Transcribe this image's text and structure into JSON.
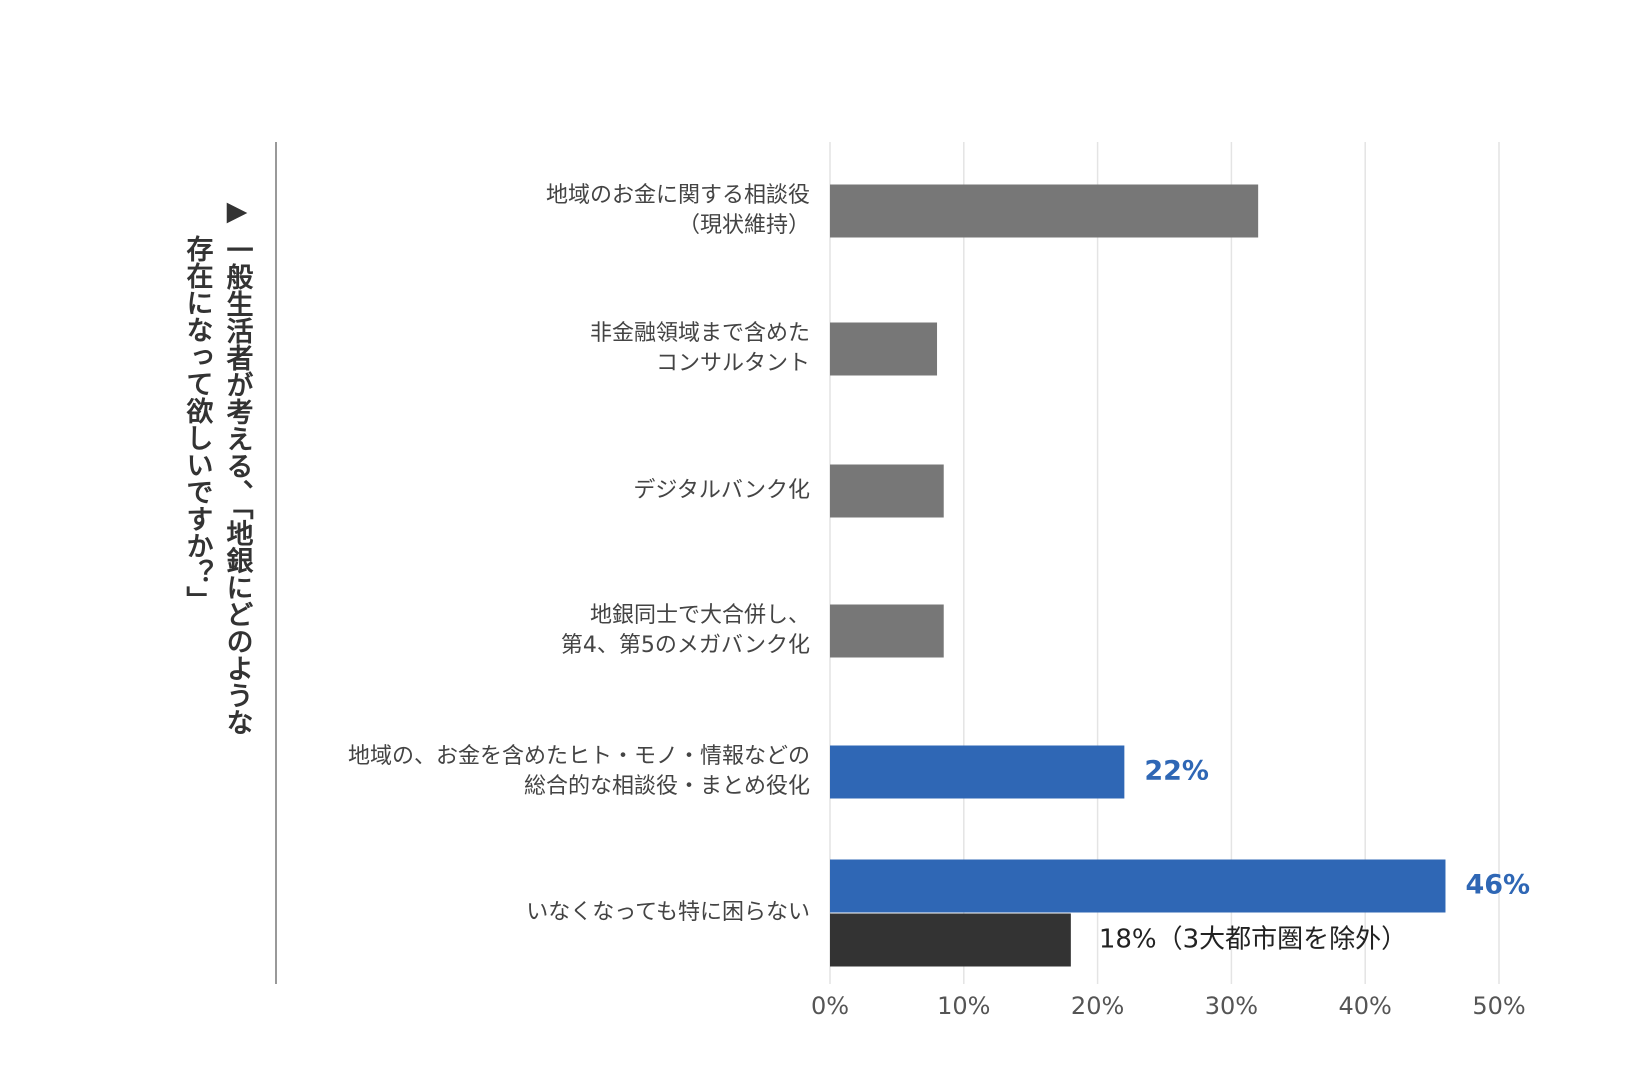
{
  "chart_data": {
    "type": "hbar",
    "title_lines": [
      "▶ 一般生活者が考える、「地銀にどのような",
      "存在になって欲しいですか？」"
    ],
    "categories": [
      [
        "地域のお金に関する相談役",
        "（現状維持）"
      ],
      [
        "非金融領域まで含めた",
        "コンサルタント"
      ],
      [
        "デジタルバンク化"
      ],
      [
        "地銀同士で大合併し、",
        "第4、第5のメガバンク化"
      ],
      [
        "地域の、お金を含めたヒト・モノ・情報などの",
        "総合的な相談役・まとめ役化"
      ],
      [
        "いなくなっても特に困らない"
      ]
    ],
    "series": [
      {
        "colors": [
          "#777777",
          "#777777",
          "#777777",
          "#777777",
          "#2f67b5",
          "#2f67b5"
        ],
        "values": [
          32,
          8,
          8.5,
          8.5,
          22,
          46
        ],
        "value_labels": [
          null,
          null,
          null,
          null,
          "22%",
          "46%"
        ],
        "label_color": "#2f67b5"
      },
      {
        "color": "#333333",
        "values": [
          null,
          null,
          null,
          null,
          null,
          18
        ],
        "value_labels": [
          null,
          null,
          null,
          null,
          null,
          "18%（3大都市圏を除外）"
        ],
        "label_color": "#222222"
      }
    ],
    "xlim": [
      0,
      50
    ],
    "xticks": [
      {
        "value": 0,
        "label": "0%"
      },
      {
        "value": 10,
        "label": "10%"
      },
      {
        "value": 20,
        "label": "20%"
      },
      {
        "value": 30,
        "label": "30%"
      },
      {
        "value": 40,
        "label": "40%"
      },
      {
        "value": 50,
        "label": "50%"
      }
    ],
    "grid": true
  }
}
